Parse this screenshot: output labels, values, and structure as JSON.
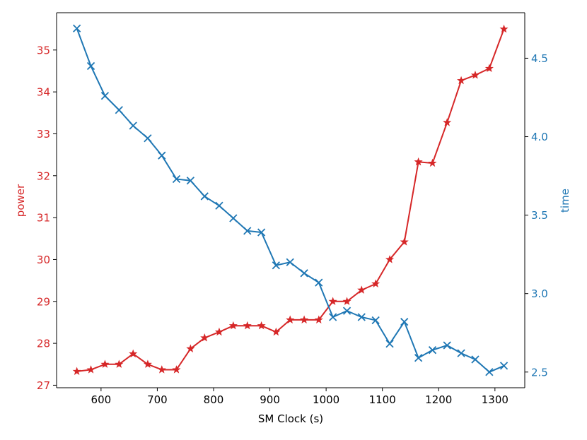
{
  "chart_data": {
    "type": "line",
    "title": "",
    "xlabel": "SM Clock (s)",
    "xlim": [
      521,
      1353
    ],
    "x_ticks": [
      600,
      700,
      800,
      900,
      1000,
      1100,
      1200,
      1300
    ],
    "x_tick_labels": [
      "600",
      "700",
      "800",
      "900",
      "1000",
      "1100",
      "1200",
      "1300"
    ],
    "x": [
      557,
      582,
      607,
      632,
      657,
      683,
      708,
      734,
      759,
      784,
      810,
      835,
      860,
      885,
      911,
      936,
      961,
      987,
      1012,
      1037,
      1063,
      1088,
      1113,
      1139,
      1164,
      1189,
      1215,
      1240,
      1265,
      1290,
      1316
    ],
    "series": [
      {
        "name": "power",
        "axis": "left",
        "color": "#d62728",
        "marker": "star",
        "values": [
          27.33,
          27.37,
          27.5,
          27.5,
          27.75,
          27.5,
          27.37,
          27.37,
          27.87,
          28.13,
          28.27,
          28.42,
          28.42,
          28.42,
          28.27,
          28.56,
          28.56,
          28.56,
          29.0,
          29.0,
          29.27,
          29.42,
          30.0,
          30.42,
          32.33,
          32.3,
          33.27,
          34.27,
          34.4,
          34.56,
          35.5
        ]
      },
      {
        "name": "time",
        "axis": "right",
        "color": "#1f77b4",
        "marker": "x",
        "values": [
          4.69,
          4.45,
          4.26,
          4.17,
          4.07,
          3.99,
          3.88,
          3.73,
          3.72,
          3.62,
          3.56,
          3.48,
          3.4,
          3.39,
          3.18,
          3.2,
          3.13,
          3.07,
          2.85,
          2.89,
          2.85,
          2.83,
          2.68,
          2.82,
          2.59,
          2.64,
          2.67,
          2.62,
          2.58,
          2.5,
          2.54
        ]
      }
    ],
    "y_left": {
      "label": "power",
      "color": "#d62728",
      "ylim": [
        26.94,
        35.89
      ],
      "ticks": [
        27,
        28,
        29,
        30,
        31,
        32,
        33,
        34,
        35
      ],
      "tick_labels": [
        "27",
        "28",
        "29",
        "30",
        "31",
        "32",
        "33",
        "34",
        "35"
      ]
    },
    "y_right": {
      "label": "time",
      "color": "#1f77b4",
      "ylim": [
        2.4,
        4.79
      ],
      "ticks": [
        2.5,
        3.0,
        3.5,
        4.0,
        4.5
      ],
      "tick_labels": [
        "2.5",
        "3.0",
        "3.5",
        "4.0",
        "4.5"
      ]
    },
    "grid": false,
    "legend": "none"
  }
}
